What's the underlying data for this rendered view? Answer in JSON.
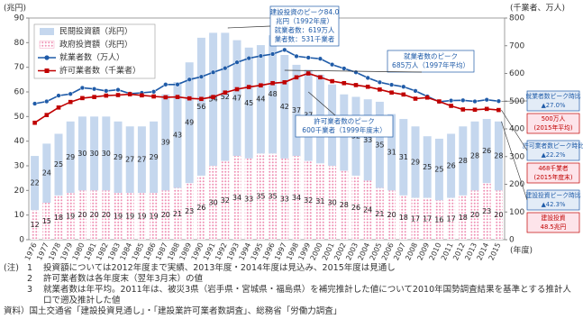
{
  "chart_data": {
    "type": "bar",
    "stacked": true,
    "ylabel": "(兆円)",
    "y2label": "(千業者、万人)",
    "xlabel": "(年度)",
    "categories": [
      "1976",
      "1977",
      "1978",
      "1979",
      "1980",
      "1981",
      "1982",
      "1983",
      "1984",
      "1985",
      "1986",
      "1987",
      "1988",
      "1989",
      "1990",
      "1991",
      "1992",
      "1993",
      "1994",
      "1995",
      "1996",
      "1997",
      "1998",
      "1999",
      "2000",
      "2001",
      "2002",
      "2003",
      "2004",
      "2005",
      "2006",
      "2007",
      "2008",
      "2009",
      "2010",
      "2011",
      "2012",
      "2013",
      "2014",
      "2015"
    ],
    "ylim": [
      0,
      90
    ],
    "yticks": [
      0,
      10,
      20,
      30,
      40,
      50,
      60,
      70,
      80,
      90
    ],
    "y2lim": [
      0,
      800
    ],
    "y2ticks": [
      0,
      100,
      200,
      300,
      400,
      500,
      600,
      700,
      800
    ],
    "grid": false,
    "legend": "upper left",
    "series": [
      {
        "name": "民間投資額（兆円）",
        "type": "bar",
        "color": "#c5d7ee",
        "values": [
          22,
          24,
          25,
          29,
          30,
          30,
          30,
          29,
          27,
          27,
          29,
          39,
          43,
          49,
          56,
          54,
          52,
          47,
          45,
          44,
          48,
          42,
          37,
          37,
          36,
          33,
          31,
          32,
          33,
          35,
          31,
          31,
          29,
          25,
          25,
          26,
          28,
          28,
          26,
          28
        ]
      },
      {
        "name": "政府投資額（兆円）",
        "type": "bar",
        "pattern": "dots",
        "color": "#ef8fb3",
        "values": [
          12,
          15,
          18,
          19,
          20,
          20,
          20,
          19,
          19,
          19,
          19,
          20,
          21,
          23,
          26,
          30,
          32,
          34,
          33,
          35,
          35,
          33,
          34,
          32,
          31,
          30,
          28,
          26,
          24,
          21,
          20,
          18,
          17,
          17,
          16,
          17,
          18,
          20,
          23,
          20
        ]
      },
      {
        "name": "就業者数（万人）",
        "type": "line",
        "axis": "y2",
        "marker": "circle",
        "color": "#1f5ba8",
        "values": [
          491,
          499,
          520,
          526,
          548,
          544,
          537,
          541,
          527,
          530,
          534,
          560,
          560,
          578,
          588,
          604,
          619,
          640,
          655,
          663,
          670,
          685,
          662,
          657,
          653,
          632,
          618,
          604,
          584,
          568,
          559,
          552,
          537,
          517,
          498,
          502,
          503,
          499,
          505,
          500
        ]
      },
      {
        "name": "許可業者数（千業者）",
        "type": "line",
        "axis": "y2",
        "marker": "square",
        "color": "#c00000",
        "values": [
          422,
          450,
          477,
          497,
          511,
          515,
          520,
          522,
          525,
          521,
          517,
          514,
          515,
          510,
          508,
          515,
          531,
          543,
          551,
          557,
          565,
          568,
          586,
          600,
          586,
          572,
          565,
          558,
          552,
          542,
          531,
          524,
          509,
          513,
          499,
          483,
          470,
          469,
          472,
          468
        ]
      }
    ],
    "annotations": [
      {
        "lines": [
          "建設投資のピーク84.0",
          "兆円（1992年度）",
          "就業者数：619万人",
          "業者数：531千業者"
        ],
        "color": "#1f5ba8"
      },
      {
        "lines": [
          "就業者数のピーク",
          "685万人（1997年平均）"
        ],
        "color": "#1f5ba8"
      },
      {
        "lines": [
          "許可業者数のピーク",
          "600千業者（1999年度末）"
        ],
        "color": "#1f5ba8"
      }
    ],
    "side_notes": [
      {
        "lines": [
          "就業者数ピーク時比",
          "▲27.0%"
        ],
        "color": "#1f5ba8",
        "fill": "#e3ecf7"
      },
      {
        "lines": [
          "500万人",
          "(2015年平均)"
        ],
        "color": "#c00000",
        "fill": "#fde4ea"
      },
      {
        "lines": [
          "許可業者数ピーク時比",
          "▲22.2%"
        ],
        "color": "#1f5ba8",
        "fill": "#e3ecf7"
      },
      {
        "lines": [
          "468千業者",
          "(2015年度末)"
        ],
        "color": "#c00000",
        "fill": "#fde4ea"
      },
      {
        "lines": [
          "建設投資ピーク時比",
          "▲42.3%"
        ],
        "color": "#1f5ba8",
        "fill": "#e3ecf7"
      },
      {
        "lines": [
          "建設投資",
          "48.5兆円"
        ],
        "color": "#c00000",
        "fill": "#fde4ea"
      }
    ]
  },
  "notes": {
    "label": "(注)",
    "items": [
      {
        "num": "1",
        "text": "投資額については2012年度まで実績、2013年度・2014年度は見込み、2015年度は見通し"
      },
      {
        "num": "2",
        "text": "許可業者数は各年度末（翌年3月末）の値"
      },
      {
        "num": "3",
        "text": "就業者数は年平均。2011年は、被災3県（岩手県・宮城県・福島県）を補完推計した値について2010年国勢調査結果を基準とする推計人口で遡及推計した値"
      }
    ],
    "source": "資料）国土交通省「建設投資見通し」・「建設業許可業者数調査」、総務省「労働力調査」"
  }
}
